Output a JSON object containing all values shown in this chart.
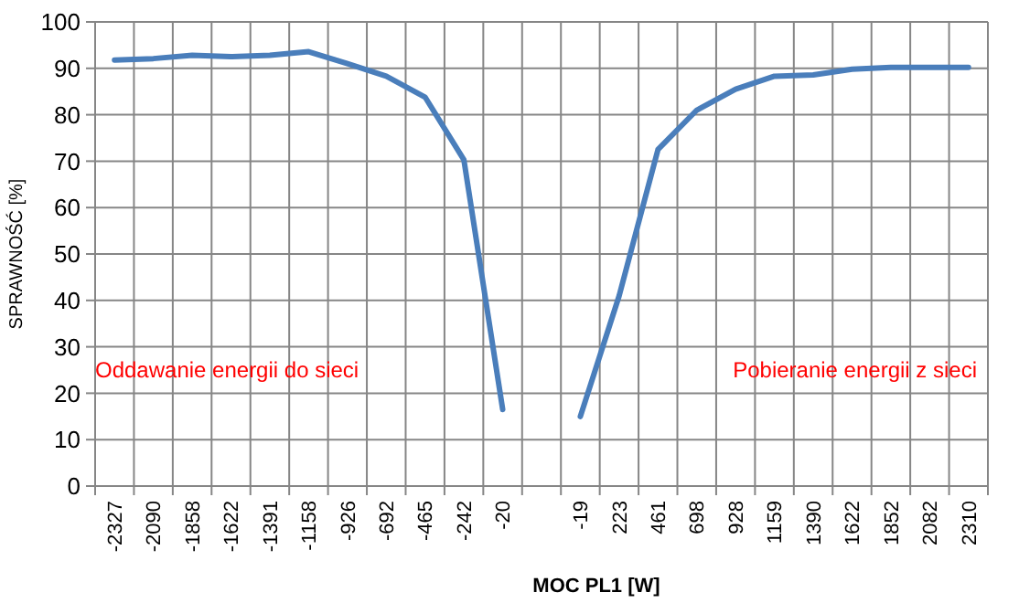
{
  "chart_data": {
    "type": "line",
    "xlabel": "MOC PL1 [W]",
    "ylabel": "SPRAWNOŚĆ [%]",
    "categories": [
      "-2327",
      "-2090",
      "-1858",
      "-1622",
      "-1391",
      "-1158",
      "-926",
      "-692",
      "-465",
      "-242",
      "-20",
      null,
      "-19",
      "223",
      "461",
      "698",
      "928",
      "1159",
      "1390",
      "1622",
      "1852",
      "2082",
      "2310"
    ],
    "series": [
      {
        "color": "#4a7ebb",
        "values": [
          91.8,
          92.1,
          92.8,
          92.5,
          92.8,
          93.6,
          91,
          88.3,
          83.8,
          70.3,
          16.5,
          null,
          15,
          41,
          72.5,
          81,
          85.5,
          88.3,
          88.6,
          89.8,
          90.2,
          90.2,
          90.2
        ]
      }
    ],
    "ylim": [
      0,
      100
    ],
    "yticks": [
      0,
      10,
      20,
      30,
      40,
      50,
      60,
      70,
      80,
      90,
      100
    ],
    "grid": true,
    "marker": "none",
    "line_style": "solid",
    "annotations": [
      "Oddawanie energii do sieci",
      "Pobieranie energii z sieci"
    ]
  }
}
